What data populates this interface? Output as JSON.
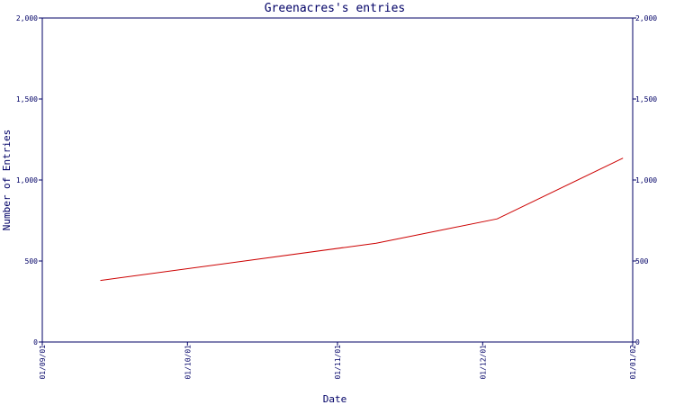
{
  "chart_data": {
    "type": "line",
    "title": "Greenacres's entries",
    "xlabel": "Date",
    "ylabel": "Number of Entries",
    "x_ticks": [
      "01/09/01",
      "01/10/01",
      "01/11/01",
      "01/12/01",
      "01/01/02"
    ],
    "y_ticks": [
      "0",
      "500",
      "1,000",
      "1,500",
      "2,000"
    ],
    "ylim": [
      0,
      2000
    ],
    "xlim": [
      "2001-09-01",
      "2002-01-01"
    ],
    "grid": false,
    "line_color": "#cc0000",
    "axis_color": "#000066",
    "series": [
      {
        "x": [
          "2001-09-13",
          "2001-11-09",
          "2001-12-04",
          "2001-12-30"
        ],
        "y": [
          380,
          610,
          760,
          1135
        ]
      }
    ]
  }
}
